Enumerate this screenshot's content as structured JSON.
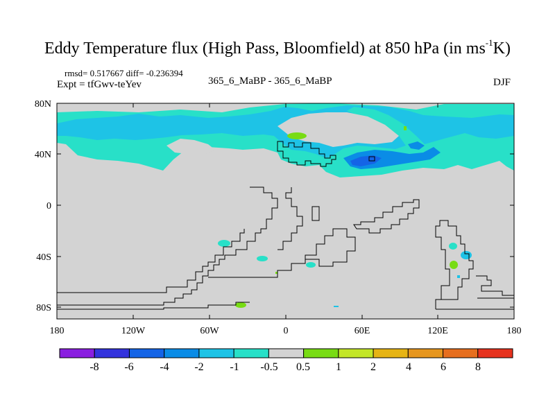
{
  "title_main": "Eddy Temperature flux (High Pass, Bloomfield) at 850 hPa (in ms",
  "title_sup": "-1",
  "title_end": "K)",
  "stats": "rmsd= 0.517667 diff= -0.236394",
  "expt": "Expt = tfGwv-teYev",
  "center_label": "365_6_MaBP - 365_6_MaBP",
  "season": "DJF",
  "lat_ticks": [
    "80N",
    "40N",
    "0",
    "40S",
    "80S"
  ],
  "lon_ticks": [
    "180",
    "120W",
    "60W",
    "0",
    "60E",
    "120E",
    "180"
  ],
  "colorbar": {
    "colors": [
      "#8a1ee0",
      "#3333dd",
      "#1464e6",
      "#0a8ce6",
      "#1ec3e6",
      "#28e0c8",
      "#d3d3d3",
      "#78dc14",
      "#c3e628",
      "#e6b414",
      "#e6961e",
      "#e66e1e",
      "#e6321e"
    ],
    "labels": [
      "-8",
      "-6",
      "-4",
      "-2",
      "-1",
      "-0.5",
      "0.5",
      "1",
      "2",
      "4",
      "6",
      "8"
    ]
  },
  "colors": {
    "background": "#d3d3d3",
    "light_cyan": "#28e0c8",
    "cyan": "#1ec3e6",
    "blue": "#0a8ce6",
    "green": "#78dc14"
  }
}
